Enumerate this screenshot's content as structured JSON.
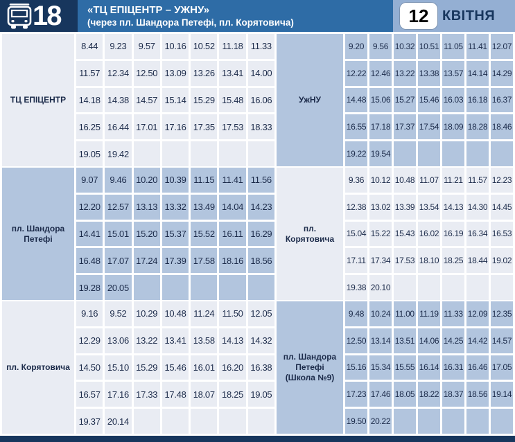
{
  "header": {
    "route_number": "18",
    "title": "«ТЦ ЕПІЦЕНТР – УЖНУ»",
    "subtitle": "(через пл. Шандора Петефі, пл. Корятовича)",
    "date_day": "12",
    "date_month": "КВІТНЯ"
  },
  "colors": {
    "navy": "#17365d",
    "midblue": "#2e6ca6",
    "lightblue": "#94afd3",
    "celllight": "#e9ecf3",
    "cellblue": "#b2c5de",
    "ink": "#1c2b4a"
  },
  "bands": [
    {
      "left": {
        "stop": "ТЦ ЕПІЦЕНТР",
        "variant": "light",
        "rows": [
          [
            "8.44",
            "9.23",
            "9.57",
            "10.16",
            "10.52",
            "11.18",
            "11.33"
          ],
          [
            "11.57",
            "12.34",
            "12.50",
            "13.09",
            "13.26",
            "13.41",
            "14.00"
          ],
          [
            "14.18",
            "14.38",
            "14.57",
            "15.14",
            "15.29",
            "15.48",
            "16.06"
          ],
          [
            "16.25",
            "16.44",
            "17.01",
            "17.16",
            "17.35",
            "17.53",
            "18.33"
          ],
          [
            "19.05",
            "19.42",
            "",
            "",
            "",
            "",
            ""
          ]
        ]
      },
      "right": {
        "stop": "УжНУ",
        "variant": "blue",
        "rows": [
          [
            "9.20",
            "9.56",
            "10.32",
            "10.51",
            "11.05",
            "11.41",
            "12.07"
          ],
          [
            "12.22",
            "12.46",
            "13.22",
            "13.38",
            "13.57",
            "14.14",
            "14.29"
          ],
          [
            "14.48",
            "15.06",
            "15.27",
            "15.46",
            "16.03",
            "16.18",
            "16.37"
          ],
          [
            "16.55",
            "17.18",
            "17.37",
            "17.54",
            "18.09",
            "18.28",
            "18.46"
          ],
          [
            "19.22",
            "19.54",
            "",
            "",
            "",
            "",
            ""
          ]
        ]
      }
    },
    {
      "left": {
        "stop": "пл. Шандора Петефі",
        "variant": "blue",
        "rows": [
          [
            "9.07",
            "9.46",
            "10.20",
            "10.39",
            "11.15",
            "11.41",
            "11.56"
          ],
          [
            "12.20",
            "12.57",
            "13.13",
            "13.32",
            "13.49",
            "14.04",
            "14.23"
          ],
          [
            "14.41",
            "15.01",
            "15.20",
            "15.37",
            "15.52",
            "16.11",
            "16.29"
          ],
          [
            "16.48",
            "17.07",
            "17.24",
            "17.39",
            "17.58",
            "18.16",
            "18.56"
          ],
          [
            "19.28",
            "20.05",
            "",
            "",
            "",
            "",
            ""
          ]
        ]
      },
      "right": {
        "stop": "пл. Корятовича",
        "variant": "light",
        "rows": [
          [
            "9.36",
            "10.12",
            "10.48",
            "11.07",
            "11.21",
            "11.57",
            "12.23"
          ],
          [
            "12.38",
            "13.02",
            "13.39",
            "13.54",
            "14.13",
            "14.30",
            "14.45"
          ],
          [
            "15.04",
            "15.22",
            "15.43",
            "16.02",
            "16.19",
            "16.34",
            "16.53"
          ],
          [
            "17.11",
            "17.34",
            "17.53",
            "18.10",
            "18.25",
            "18.44",
            "19.02"
          ],
          [
            "19.38",
            "20.10",
            "",
            "",
            "",
            "",
            ""
          ]
        ]
      }
    },
    {
      "left": {
        "stop": "пл. Корятовича",
        "variant": "light",
        "rows": [
          [
            "9.16",
            "9.52",
            "10.29",
            "10.48",
            "11.24",
            "11.50",
            "12.05"
          ],
          [
            "12.29",
            "13.06",
            "13.22",
            "13.41",
            "13.58",
            "14.13",
            "14.32"
          ],
          [
            "14.50",
            "15.10",
            "15.29",
            "15.46",
            "16.01",
            "16.20",
            "16.38"
          ],
          [
            "16.57",
            "17.16",
            "17.33",
            "17.48",
            "18.07",
            "18.25",
            "19.05"
          ],
          [
            "19.37",
            "20.14",
            "",
            "",
            "",
            "",
            ""
          ]
        ]
      },
      "right": {
        "stop": "пл. Шандора Петефі (Школа №9)",
        "variant": "blue",
        "rows": [
          [
            "9.48",
            "10.24",
            "11.00",
            "11.19",
            "11.33",
            "12.09",
            "12.35"
          ],
          [
            "12.50",
            "13.14",
            "13.51",
            "14.06",
            "14.25",
            "14.42",
            "14.57"
          ],
          [
            "15.16",
            "15.34",
            "15.55",
            "16.14",
            "16.31",
            "16.46",
            "17.05"
          ],
          [
            "17.23",
            "17.46",
            "18.05",
            "18.22",
            "18.37",
            "18.56",
            "19.14"
          ],
          [
            "19.50",
            "20.22",
            "",
            "",
            "",
            "",
            ""
          ]
        ]
      }
    }
  ]
}
